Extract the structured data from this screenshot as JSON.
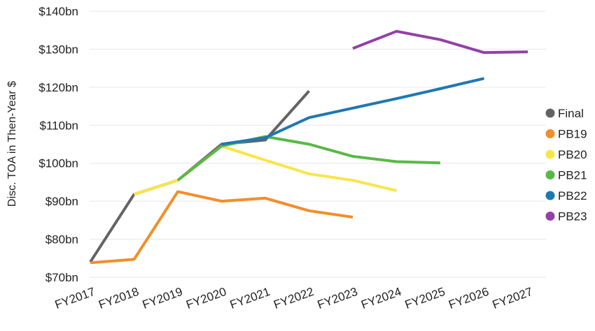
{
  "chart_data": {
    "type": "line",
    "title": "",
    "xlabel": "",
    "ylabel": "Disc. TOA in Then-Year $",
    "categories": [
      "FY2017",
      "FY2018",
      "FY2019",
      "FY2020",
      "FY2021",
      "FY2022",
      "FY2023",
      "FY2024",
      "FY2025",
      "FY2026",
      "FY2027"
    ],
    "yticks": [
      70,
      80,
      90,
      100,
      110,
      120,
      130,
      140
    ],
    "ytick_labels": [
      "$70bn",
      "$80bn",
      "$90bn",
      "$100bn",
      "$110bn",
      "$120bn",
      "$130bn",
      "$140bn"
    ],
    "ylim": [
      70,
      140
    ],
    "grid": true,
    "legend_position": "right",
    "series": [
      {
        "name": "Final",
        "color": "#636363",
        "points": [
          [
            "FY2017",
            74
          ],
          [
            "FY2018",
            91.8
          ],
          [
            "FY2019",
            95.5
          ],
          [
            "FY2020",
            105
          ],
          [
            "FY2021",
            106.1
          ],
          [
            "FY2022",
            119
          ]
        ]
      },
      {
        "name": "PB19",
        "color": "#F28E2B",
        "points": [
          [
            "FY2017",
            73.8
          ],
          [
            "FY2018",
            74.7
          ],
          [
            "FY2019",
            92.5
          ],
          [
            "FY2020",
            90
          ],
          [
            "FY2021",
            90.8
          ],
          [
            "FY2022",
            87.5
          ],
          [
            "FY2023",
            85.8
          ]
        ]
      },
      {
        "name": "PB20",
        "color": "#F8E54B",
        "points": [
          [
            "FY2018",
            91.8
          ],
          [
            "FY2019",
            95.5
          ],
          [
            "FY2020",
            104.5
          ],
          [
            "FY2021",
            100.8
          ],
          [
            "FY2022",
            97.2
          ],
          [
            "FY2023",
            95.5
          ],
          [
            "FY2024",
            92.8
          ]
        ]
      },
      {
        "name": "PB21",
        "color": "#59B947",
        "points": [
          [
            "FY2019",
            95.5
          ],
          [
            "FY2020",
            104.5
          ],
          [
            "FY2021",
            107
          ],
          [
            "FY2022",
            105
          ],
          [
            "FY2023",
            101.8
          ],
          [
            "FY2024",
            100.4
          ],
          [
            "FY2025",
            100.1
          ]
        ]
      },
      {
        "name": "PB22",
        "color": "#1F77B4",
        "points": [
          [
            "FY2020",
            105
          ],
          [
            "FY2021",
            106.7
          ],
          [
            "FY2022",
            112
          ],
          [
            "FY2023",
            114.5
          ],
          [
            "FY2024",
            117
          ],
          [
            "FY2025",
            119.6
          ],
          [
            "FY2026",
            122.3
          ]
        ]
      },
      {
        "name": "PB23",
        "color": "#9440A6",
        "points": [
          [
            "FY2023",
            130.2
          ],
          [
            "FY2024",
            134.7
          ],
          [
            "FY2025",
            132.5
          ],
          [
            "FY2026",
            129.1
          ],
          [
            "FY2027",
            129.3
          ]
        ]
      }
    ]
  }
}
